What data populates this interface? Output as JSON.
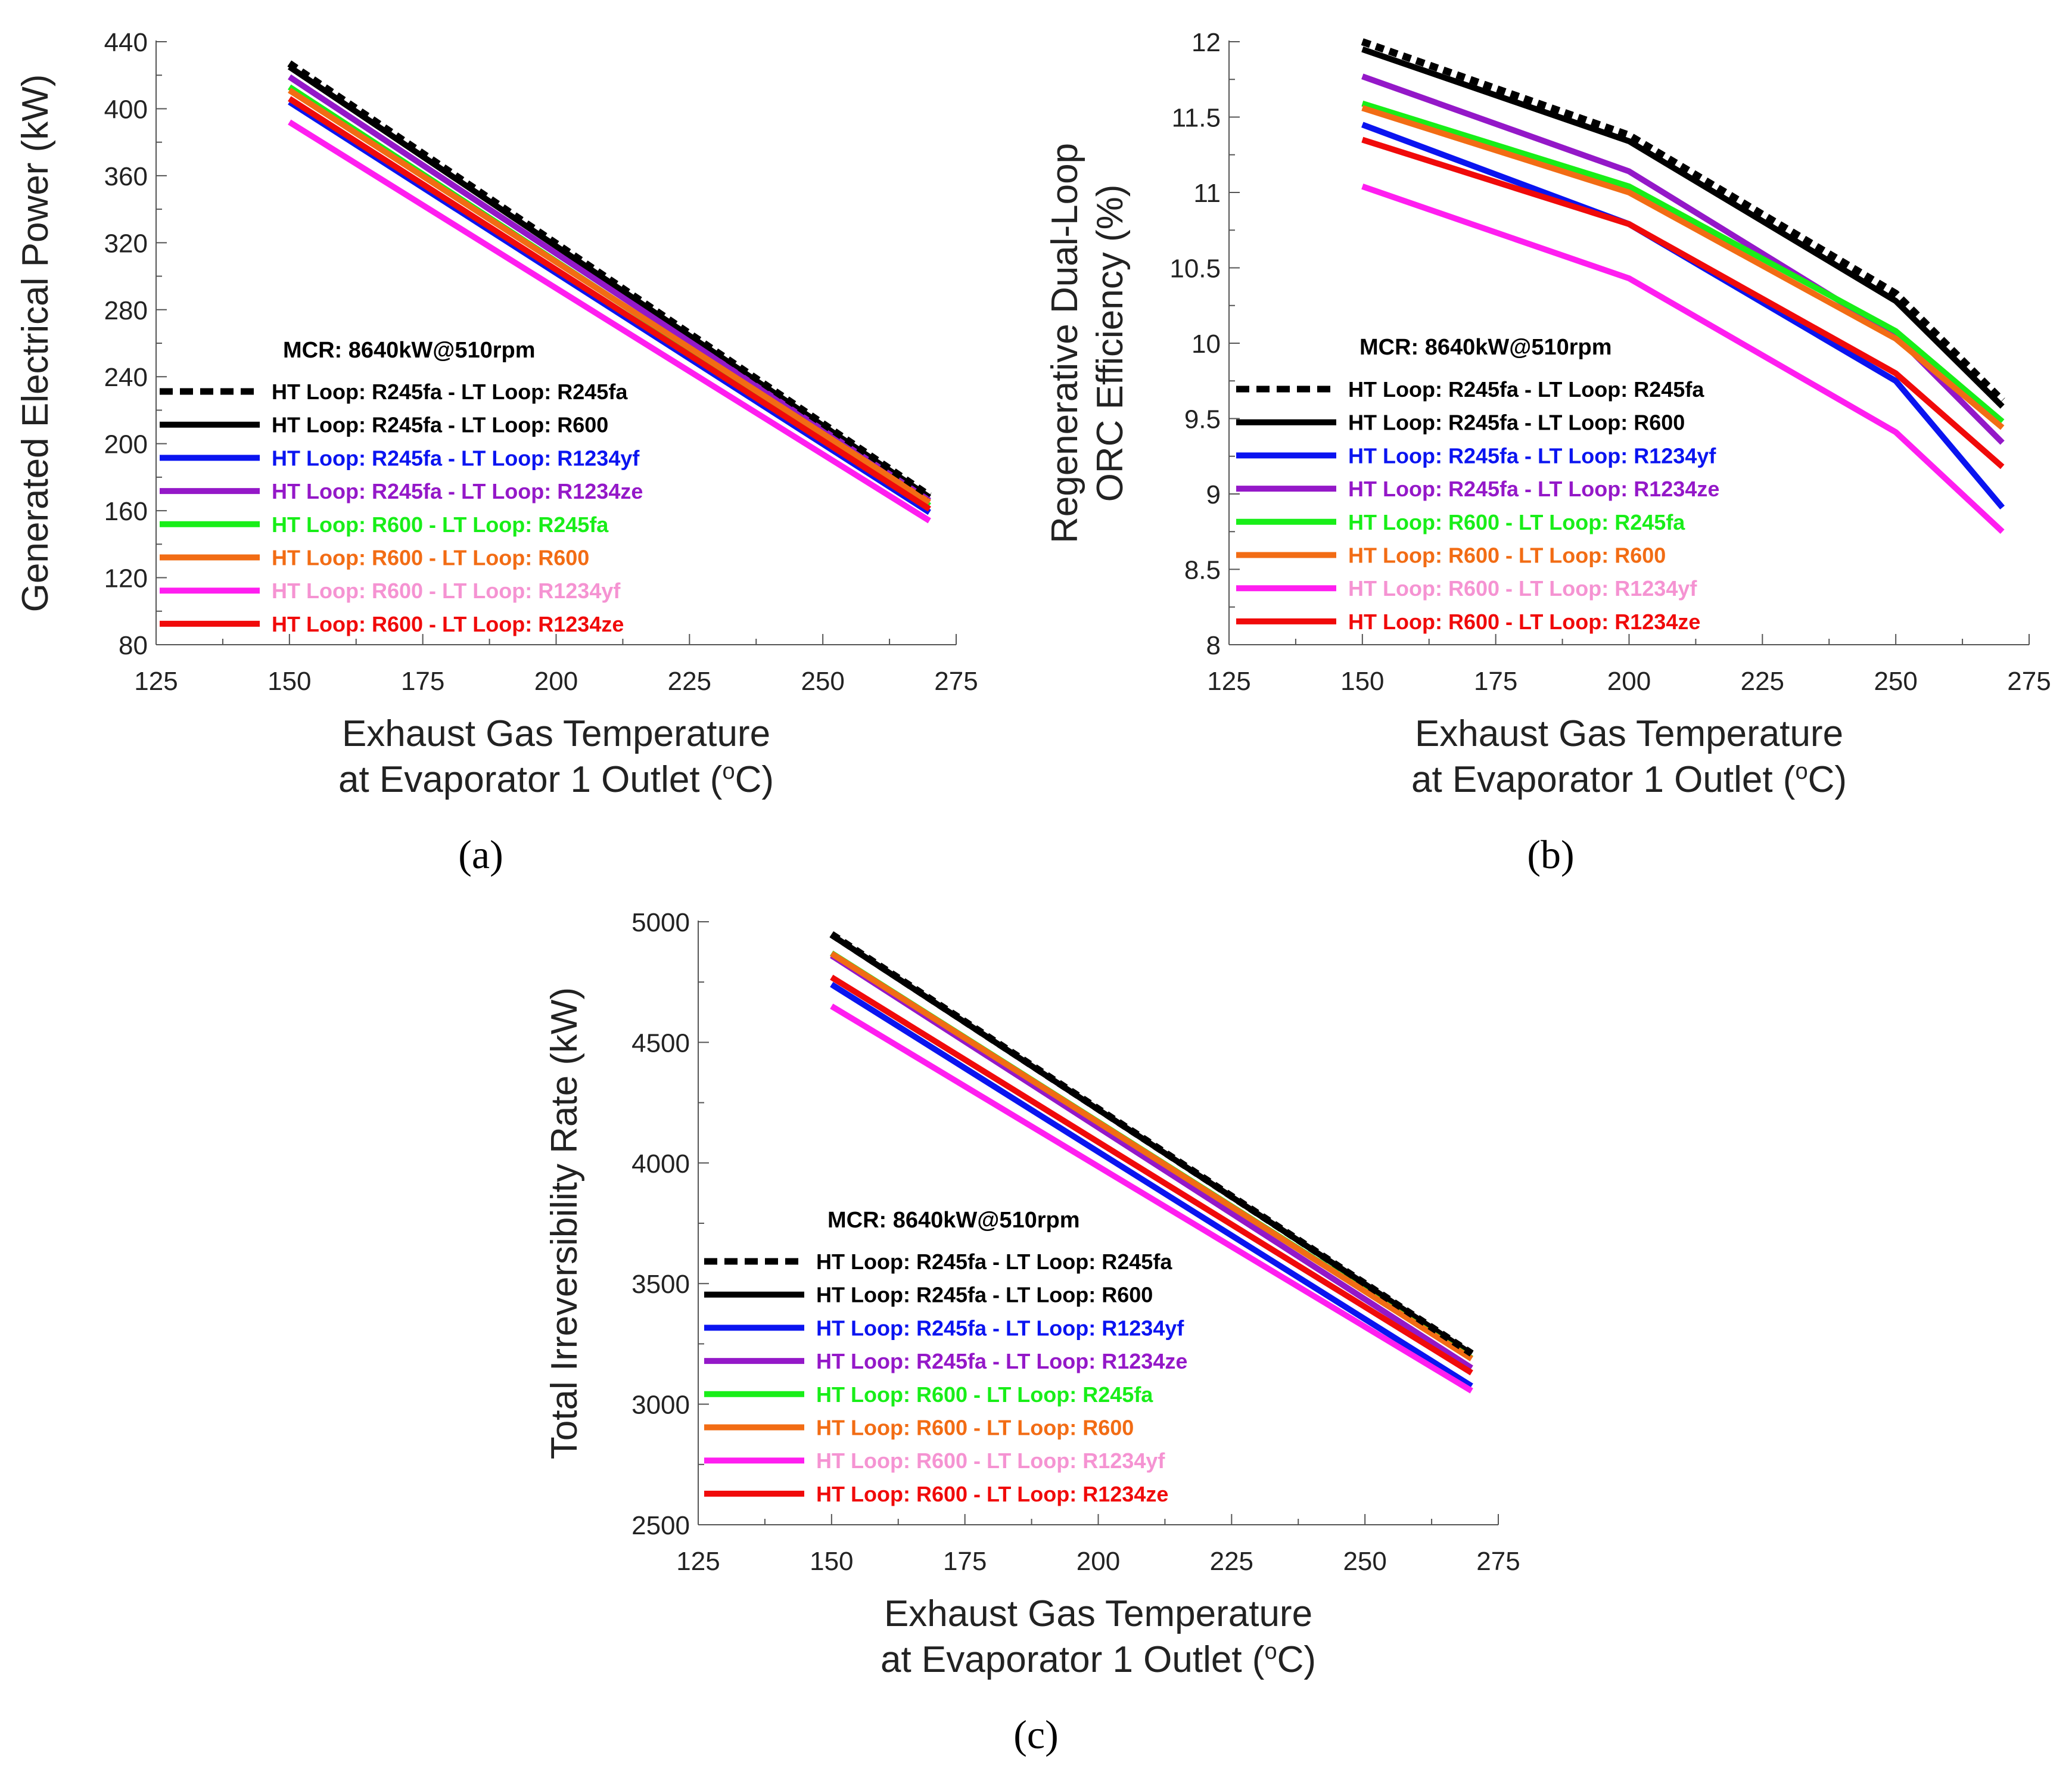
{
  "figure": {
    "panel_labels": [
      "(a)",
      "(b)",
      "(c)"
    ]
  },
  "series_styles": [
    {
      "color": "#000000",
      "dashed": true,
      "legend_text_color": "#000000"
    },
    {
      "color": "#000000",
      "dashed": false,
      "legend_text_color": "#000000"
    },
    {
      "color": "#0a14f0",
      "dashed": false,
      "legend_text_color": "#0a14f0"
    },
    {
      "color": "#9418c8",
      "dashed": false,
      "legend_text_color": "#9418c8"
    },
    {
      "color": "#18ee18",
      "dashed": false,
      "legend_text_color": "#18ee18"
    },
    {
      "color": "#f26c14",
      "dashed": false,
      "legend_text_color": "#f26c14"
    },
    {
      "color": "#ff1ef0",
      "dashed": false,
      "legend_text_color": "#f593d2"
    },
    {
      "color": "#f00a0a",
      "dashed": false,
      "legend_text_color": "#f00a0a"
    }
  ],
  "chart_data": [
    {
      "type": "line",
      "panel": "(a)",
      "title": "",
      "xlabel": [
        "Exhaust Gas Temperature",
        "at Evaporator 1 Outlet (",
        "o",
        "C)"
      ],
      "ylabel": "Generated Electrical Power (kW)",
      "xlim": [
        125,
        275
      ],
      "ylim": [
        80,
        440
      ],
      "xticks": [
        "125",
        "150",
        "175",
        "200",
        "225",
        "250",
        "275"
      ],
      "yticks": [
        "80",
        "120",
        "160",
        "200",
        "240",
        "280",
        "320",
        "360",
        "400",
        "440"
      ],
      "legend_title": "MCR: 8640kW@510rpm",
      "x": [
        150,
        270
      ],
      "series": [
        {
          "name": "HT Loop: R245fa - LT Loop: R245fa",
          "values": [
            427,
            169
          ]
        },
        {
          "name": "HT Loop: R245fa - LT Loop: R600",
          "values": [
            425,
            168
          ]
        },
        {
          "name": "HT Loop: R245fa - LT Loop: R1234yf",
          "values": [
            404,
            159
          ]
        },
        {
          "name": "HT Loop: R245fa - LT Loop: R1234ze",
          "values": [
            419,
            166
          ]
        },
        {
          "name": "HT Loop: R600 - LT Loop: R245fa",
          "values": [
            413,
            163
          ]
        },
        {
          "name": "HT Loop: R600 - LT Loop: R600",
          "values": [
            411,
            165
          ]
        },
        {
          "name": "HT Loop: R600 - LT Loop: R1234yf",
          "values": [
            392,
            154
          ]
        },
        {
          "name": "HT Loop: R600 - LT Loop: R1234ze",
          "values": [
            406,
            161
          ]
        }
      ]
    },
    {
      "type": "line",
      "panel": "(b)",
      "title": "",
      "xlabel": [
        "Exhaust Gas Temperature",
        "at Evaporator 1 Outlet (",
        "o",
        "C)"
      ],
      "ylabel": [
        "Regenerative Dual-Loop",
        "ORC Efficiency (%)"
      ],
      "xlim": [
        125,
        275
      ],
      "ylim": [
        8,
        12
      ],
      "xticks": [
        "125",
        "150",
        "175",
        "200",
        "225",
        "250",
        "275"
      ],
      "yticks": [
        "8",
        "8.5",
        "9",
        "9.5",
        "10",
        "10.5",
        "11",
        "11.5",
        "12"
      ],
      "legend_title": "MCR: 8640kW@510rpm",
      "x": [
        150,
        200,
        250,
        270
      ],
      "series": [
        {
          "name": "HT Loop: R245fa - LT Loop: R245fa",
          "values": [
            12.0,
            11.38,
            10.33,
            9.62
          ]
        },
        {
          "name": "HT Loop: R245fa - LT Loop: R600",
          "values": [
            11.95,
            11.34,
            10.28,
            9.58
          ]
        },
        {
          "name": "HT Loop: R245fa - LT Loop: R1234yf",
          "values": [
            11.45,
            10.79,
            9.75,
            8.91
          ]
        },
        {
          "name": "HT Loop: R245fa - LT Loop: R1234ze",
          "values": [
            11.77,
            11.14,
            10.05,
            9.34
          ]
        },
        {
          "name": "HT Loop: R600 - LT Loop: R245fa",
          "values": [
            11.59,
            11.04,
            10.08,
            9.48
          ]
        },
        {
          "name": "HT Loop: R600 - LT Loop: R600",
          "values": [
            11.56,
            11.0,
            10.03,
            9.44
          ]
        },
        {
          "name": "HT Loop: R600 - LT Loop: R1234yf",
          "values": [
            11.04,
            10.43,
            9.41,
            8.75
          ]
        },
        {
          "name": "HT Loop: R600 - LT Loop: R1234ze",
          "values": [
            11.35,
            10.79,
            9.8,
            9.18
          ]
        }
      ]
    },
    {
      "type": "line",
      "panel": "(c)",
      "title": "",
      "xlabel": [
        "Exhaust Gas Temperature",
        "at Evaporator 1 Outlet (",
        "o",
        "C)"
      ],
      "ylabel": "Total Irreversibility Rate (kW)",
      "xlim": [
        125,
        275
      ],
      "ylim": [
        2500,
        5000
      ],
      "xticks": [
        "125",
        "150",
        "175",
        "200",
        "225",
        "250",
        "275"
      ],
      "yticks": [
        "2500",
        "3000",
        "3500",
        "4000",
        "4500",
        "5000"
      ],
      "legend_title": "MCR: 8640kW@510rpm",
      "x": [
        150,
        270
      ],
      "series": [
        {
          "name": "HT Loop: R245fa - LT Loop: R245fa",
          "values": [
            4948,
            3210
          ]
        },
        {
          "name": "HT Loop: R245fa - LT Loop: R600",
          "values": [
            4945,
            3208
          ]
        },
        {
          "name": "HT Loop: R245fa - LT Loop: R1234yf",
          "values": [
            4740,
            3075
          ]
        },
        {
          "name": "HT Loop: R245fa - LT Loop: R1234ze",
          "values": [
            4860,
            3150
          ]
        },
        {
          "name": "HT Loop: R600 - LT Loop: R245fa",
          "values": [
            4870,
            3190
          ]
        },
        {
          "name": "HT Loop: R600 - LT Loop: R600",
          "values": [
            4868,
            3188
          ]
        },
        {
          "name": "HT Loop: R600 - LT Loop: R1234yf",
          "values": [
            4650,
            3055
          ]
        },
        {
          "name": "HT Loop: R600 - LT Loop: R1234ze",
          "values": [
            4770,
            3130
          ]
        }
      ]
    }
  ]
}
